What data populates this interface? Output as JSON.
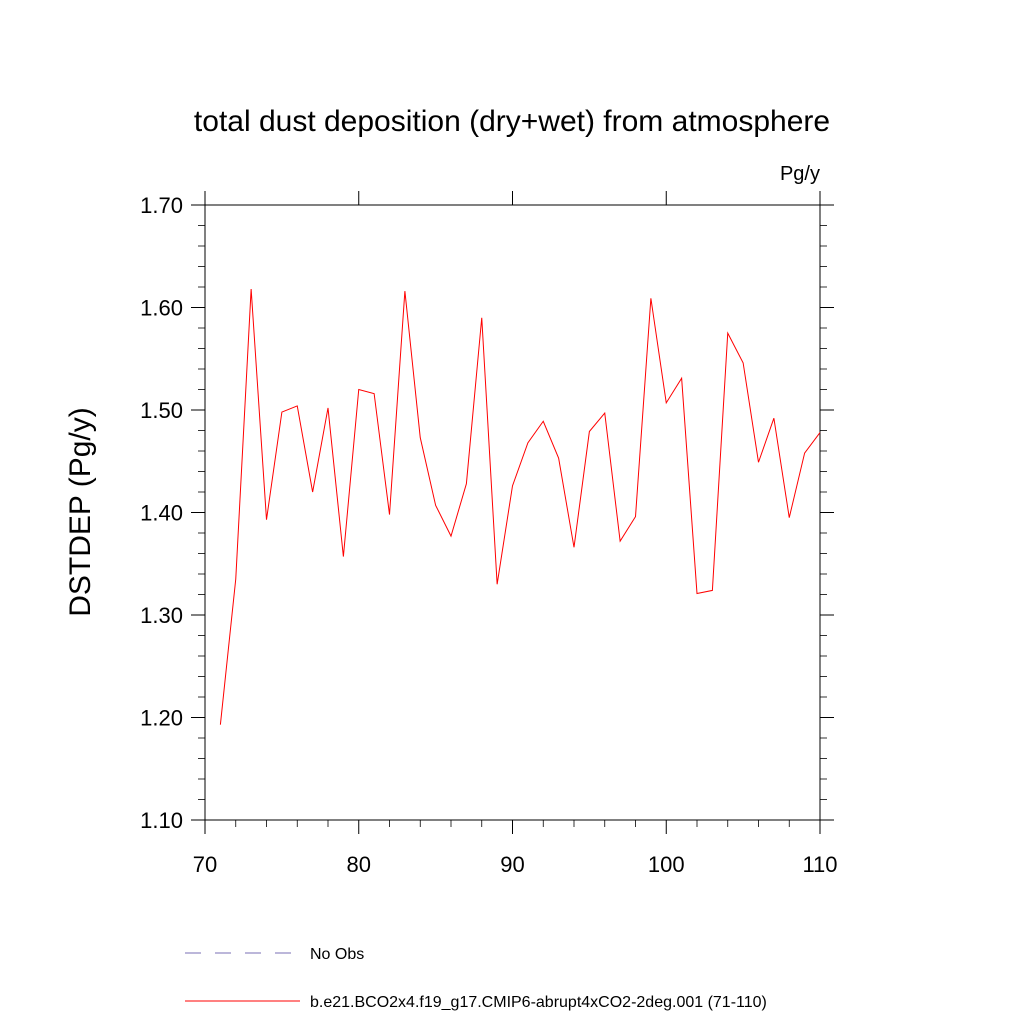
{
  "chart_data": {
    "type": "line",
    "title": "total dust deposition (dry+wet) from atmosphere",
    "units": "Pg/y",
    "ylabel": "DSTDEP  (Pg/y)",
    "xlabel": "",
    "xlim": [
      70,
      110
    ],
    "ylim": [
      1.1,
      1.7
    ],
    "x_ticks": [
      70,
      80,
      90,
      100,
      110
    ],
    "x_tick_labels": [
      "70",
      "80",
      "90",
      "100",
      "110"
    ],
    "y_ticks": [
      1.1,
      1.2,
      1.3,
      1.4,
      1.5,
      1.6,
      1.7
    ],
    "y_tick_labels": [
      "1.10",
      "1.20",
      "1.30",
      "1.40",
      "1.50",
      "1.60",
      "1.70"
    ],
    "grid": false,
    "legend_position": "bottom",
    "series": [
      {
        "name": "b.e21.BCO2x4.f19_g17.CMIP6-abrupt4xCO2-2deg.001 (71-110)",
        "color": "#ff0000",
        "style": "solid",
        "x": [
          71,
          72,
          73,
          74,
          75,
          76,
          77,
          78,
          79,
          80,
          81,
          82,
          83,
          84,
          85,
          86,
          87,
          88,
          89,
          90,
          91,
          92,
          93,
          94,
          95,
          96,
          97,
          98,
          99,
          100,
          101,
          102,
          103,
          104,
          105,
          106,
          107,
          108,
          109,
          110
        ],
        "values": [
          1.193,
          1.335,
          1.618,
          1.393,
          1.498,
          1.504,
          1.42,
          1.502,
          1.357,
          1.52,
          1.516,
          1.398,
          1.616,
          1.473,
          1.407,
          1.377,
          1.428,
          1.59,
          1.33,
          1.426,
          1.468,
          1.489,
          1.453,
          1.366,
          1.479,
          1.497,
          1.372,
          1.396,
          1.609,
          1.507,
          1.531,
          1.321,
          1.324,
          1.575,
          1.546,
          1.449,
          1.492,
          1.395,
          1.458,
          1.478
        ]
      },
      {
        "name": "No Obs",
        "color": "#7a6fb5",
        "style": "dashed",
        "x": [],
        "values": []
      }
    ]
  }
}
